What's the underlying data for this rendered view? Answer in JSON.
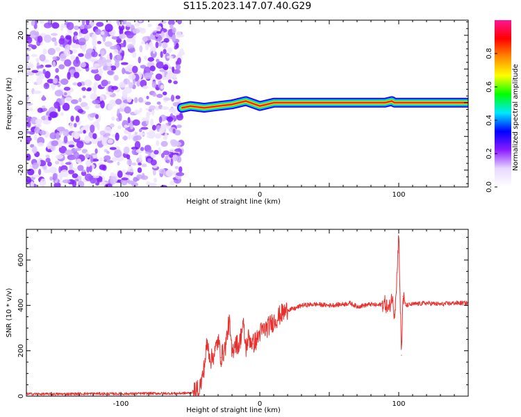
{
  "figure": {
    "title": "S115.2023.147.07.40.G29"
  },
  "chart_data": [
    {
      "type": "heatmap",
      "xlabel": "Height of straight line (km)",
      "ylabel": "Frequency (Hz)",
      "xlim": [
        -168,
        150
      ],
      "ylim": [
        -25,
        24.5
      ],
      "x_ticks": [
        -100,
        0,
        100
      ],
      "y_ticks": [
        -20,
        -10,
        0,
        10,
        20
      ],
      "colorbar": {
        "label": "Normalized spectral amplitude",
        "range": [
          0,
          1
        ],
        "ticks": [
          "0.0",
          "0.2",
          "0.4",
          "0.6",
          "0.8"
        ],
        "colors": [
          "#ffffff",
          "#e8d8ff",
          "#8a1cff",
          "#0000ff",
          "#00e8ff",
          "#00ff00",
          "#ffff00",
          "#ff8c00",
          "#ff0000",
          "#ff1493"
        ]
      },
      "noise_region_x": [
        -168,
        -56
      ],
      "signal_ridge": {
        "x": [
          -56,
          -50,
          -40,
          -30,
          -20,
          -10,
          0,
          10,
          20,
          40,
          60,
          80,
          90,
          95,
          97,
          100,
          120,
          150
        ],
        "frequency": [
          -1.5,
          -1.0,
          -1.5,
          -1.0,
          -0.5,
          0.5,
          -1.0,
          0.0,
          0.0,
          0.0,
          0.0,
          0.0,
          0.0,
          0.5,
          0.0,
          0.0,
          0.0,
          0.0
        ]
      }
    },
    {
      "type": "line",
      "xlabel": "Height of straight line (km)",
      "ylabel": "SNR (10 * v/v)",
      "xlim": [
        -168,
        150
      ],
      "ylim": [
        0,
        735
      ],
      "x_ticks": [
        -100,
        0,
        100
      ],
      "y_ticks": [
        0,
        200,
        400,
        600
      ],
      "color": "#e8302e",
      "series": [
        {
          "x": [
            -168,
            -150,
            -120,
            -100,
            -80,
            -60,
            -50,
            -45,
            -42,
            -40,
            -38,
            -35,
            -32,
            -30,
            -28,
            -25,
            -22,
            -20,
            -18,
            -15,
            -12,
            -10,
            -8,
            -5,
            -2,
            0,
            5,
            10,
            15,
            20,
            25,
            30,
            40,
            50,
            60,
            65,
            70,
            75,
            80,
            85,
            90,
            93,
            95,
            97,
            99,
            100,
            101,
            102,
            103,
            105,
            110,
            120,
            130,
            140,
            150
          ],
          "y": [
            10,
            9,
            11,
            10,
            12,
            12,
            14,
            30,
            60,
            130,
            230,
            160,
            200,
            250,
            170,
            210,
            330,
            180,
            240,
            220,
            320,
            210,
            260,
            230,
            250,
            280,
            300,
            330,
            360,
            380,
            385,
            400,
            405,
            400,
            405,
            410,
            395,
            400,
            405,
            400,
            410,
            380,
            440,
            360,
            560,
            735,
            430,
            180,
            440,
            400,
            405,
            410,
            405,
            410,
            410
          ]
        }
      ]
    }
  ]
}
